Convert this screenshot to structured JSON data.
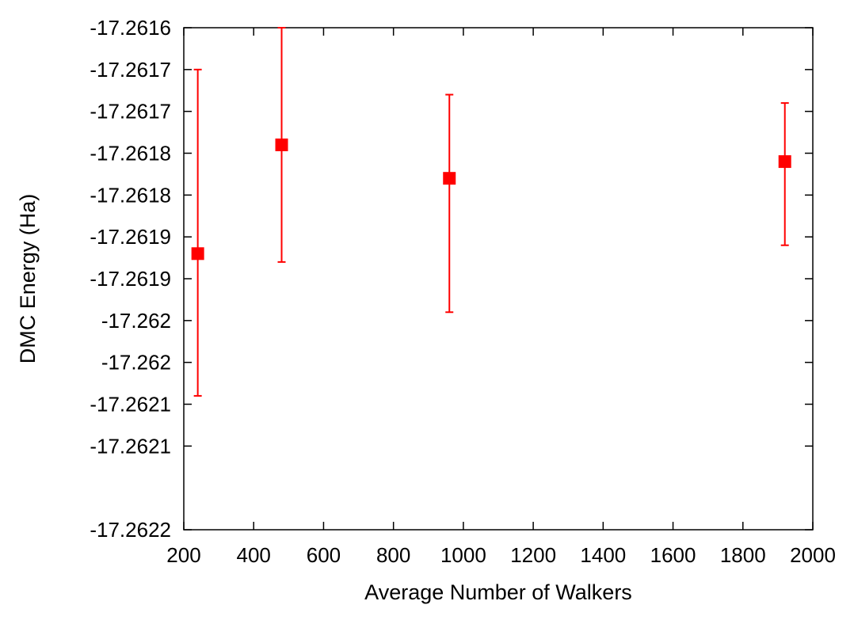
{
  "chart_data": {
    "type": "scatter",
    "title": "",
    "xlabel": "Average Number of Walkers",
    "ylabel": "DMC Energy (Ha)",
    "xlim": [
      200,
      2000
    ],
    "ylim": [
      -17.2622,
      -17.2616
    ],
    "x_ticks": [
      {
        "value": 200,
        "label": "200"
      },
      {
        "value": 400,
        "label": "400"
      },
      {
        "value": 600,
        "label": "600"
      },
      {
        "value": 800,
        "label": "800"
      },
      {
        "value": 1000,
        "label": "1000"
      },
      {
        "value": 1200,
        "label": "1200"
      },
      {
        "value": 1400,
        "label": "1400"
      },
      {
        "value": 1600,
        "label": "1600"
      },
      {
        "value": 1800,
        "label": "1800"
      },
      {
        "value": 2000,
        "label": "2000"
      }
    ],
    "y_ticks": [
      {
        "value": -17.2616,
        "label": "-17.2616"
      },
      {
        "value": -17.26165,
        "label": "-17.2617"
      },
      {
        "value": -17.2617,
        "label": "-17.2617"
      },
      {
        "value": -17.26175,
        "label": "-17.2618"
      },
      {
        "value": -17.2618,
        "label": "-17.2618"
      },
      {
        "value": -17.26185,
        "label": "-17.2619"
      },
      {
        "value": -17.2619,
        "label": "-17.2619"
      },
      {
        "value": -17.26195,
        "label": "-17.262"
      },
      {
        "value": -17.262,
        "label": "-17.262"
      },
      {
        "value": -17.26205,
        "label": "-17.2621"
      },
      {
        "value": -17.2621,
        "label": "-17.2621"
      },
      {
        "value": -17.2622,
        "label": "-17.2622"
      }
    ],
    "grid": false,
    "series": [
      {
        "color": "#ff0000",
        "marker": "square",
        "points": [
          {
            "x": 240,
            "y": -17.26187,
            "yerr_low": -17.26204,
            "yerr_high": -17.26165
          },
          {
            "x": 480,
            "y": -17.26174,
            "yerr_low": -17.26188,
            "yerr_high": -17.2616
          },
          {
            "x": 960,
            "y": -17.26178,
            "yerr_low": -17.26194,
            "yerr_high": -17.26168
          },
          {
            "x": 1920,
            "y": -17.26176,
            "yerr_low": -17.26186,
            "yerr_high": -17.26169
          }
        ]
      }
    ]
  }
}
